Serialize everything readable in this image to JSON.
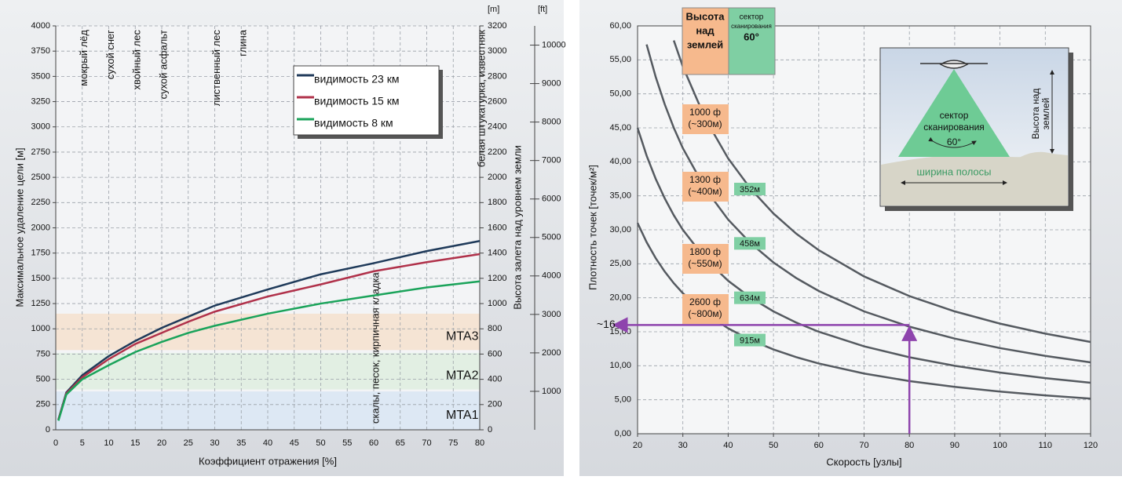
{
  "chart_data": [
    {
      "type": "line",
      "xlabel": "Коэффициент отражения [%]",
      "ylabel": "Максимальное удаление цели [м]",
      "y2label": "Высота залета над уровнем земли",
      "y2unit": "[m]",
      "x": [
        0.5,
        2,
        5,
        10,
        15,
        20,
        25,
        30,
        40,
        50,
        60,
        70,
        80
      ],
      "series": [
        {
          "name": "видимость 23 км",
          "color": "#1f3a5a",
          "values": [
            100,
            370,
            540,
            730,
            880,
            1010,
            1120,
            1230,
            1390,
            1540,
            1650,
            1770,
            1870
          ]
        },
        {
          "name": "видимость 15 км",
          "color": "#b0314a",
          "values": [
            100,
            360,
            520,
            700,
            850,
            960,
            1070,
            1170,
            1320,
            1440,
            1570,
            1660,
            1740
          ]
        },
        {
          "name": "видимость 8 км",
          "color": "#1aa35a",
          "values": [
            90,
            350,
            500,
            640,
            770,
            870,
            960,
            1030,
            1150,
            1250,
            1330,
            1410,
            1470
          ]
        }
      ],
      "xlim": [
        0,
        80
      ],
      "xticks": [
        0,
        5,
        10,
        15,
        20,
        25,
        30,
        35,
        40,
        45,
        50,
        55,
        60,
        65,
        70,
        75,
        80
      ],
      "ylim": [
        0,
        4000
      ],
      "yticks": [
        0,
        250,
        500,
        750,
        1000,
        1250,
        1500,
        1750,
        2000,
        2250,
        2500,
        2750,
        3000,
        3250,
        3500,
        3750,
        4000
      ],
      "y2lim": [
        0,
        3200
      ],
      "y2ticks": [
        0,
        200,
        400,
        600,
        800,
        1000,
        1200,
        1400,
        1600,
        1800,
        2000,
        2200,
        2400,
        2600,
        2800,
        3000,
        3200
      ],
      "ft_axis": {
        "unit": "[ft]",
        "lim": [
          0,
          10500
        ],
        "ticks": [
          1000,
          2000,
          3000,
          4000,
          5000,
          6000,
          7000,
          8000,
          9000,
          10000
        ]
      },
      "grid": true,
      "bands": [
        {
          "label": "MTA1",
          "range": [
            0,
            380
          ],
          "color": "#dde8f4"
        },
        {
          "label": "MTA2",
          "range": [
            400,
            760
          ],
          "color": "#e2efe3"
        },
        {
          "label": "MTA3",
          "range": [
            790,
            1150
          ],
          "color": "#f5e4d4"
        }
      ],
      "band_label_color": "#9a4fb0",
      "top_labels": [
        {
          "text": "мокрый лёд",
          "x": 5
        },
        {
          "text": "сухой снег",
          "x": 10
        },
        {
          "text": "хвойный лес",
          "x": 15
        },
        {
          "text": "сухой асфальт",
          "x": 20
        },
        {
          "text": "лиственный лес",
          "x": 30
        },
        {
          "text": "глина",
          "x": 35
        },
        {
          "text": "белая штукатурка, известняк",
          "x": 80
        }
      ],
      "bottom_labels": [
        {
          "text": "скалы, песок, кирпичная кладка",
          "x": 60
        }
      ]
    },
    {
      "type": "line",
      "xlabel": "Скорость [узлы]",
      "ylabel": "Плотность точек [точек/м²]",
      "x": [
        20,
        22,
        24,
        26,
        28,
        30,
        35,
        40,
        45,
        50,
        55,
        60,
        70,
        80,
        90,
        100,
        110,
        120
      ],
      "series": [
        {
          "name": "915м",
          "color": "#555a60",
          "values": [
            31,
            28.18,
            25.83,
            23.85,
            22.14,
            20.67,
            17.71,
            15.5,
            13.78,
            12.4,
            11.27,
            10.33,
            8.86,
            7.75,
            6.89,
            6.2,
            5.64,
            5.17
          ]
        },
        {
          "name": "634м",
          "color": "#555a60",
          "values": [
            45,
            40.91,
            37.5,
            34.62,
            32.14,
            30,
            25.71,
            22.5,
            20,
            18,
            16.36,
            15,
            12.86,
            11.25,
            10,
            9,
            8.18,
            7.5
          ]
        },
        {
          "name": "458м",
          "color": "#555a60",
          "values": [
            null,
            57.27,
            52.5,
            48.46,
            45,
            42,
            36,
            31.5,
            28,
            25.2,
            22.91,
            21,
            18,
            15.75,
            14,
            12.6,
            11.45,
            10.5
          ]
        },
        {
          "name": "352м",
          "color": "#555a60",
          "values": [
            null,
            null,
            null,
            null,
            57.86,
            54,
            46.29,
            40.5,
            36,
            32.4,
            29.45,
            27,
            23.14,
            20.25,
            18,
            16.2,
            14.73,
            13.5
          ]
        }
      ],
      "xlim": [
        20,
        120
      ],
      "xticks": [
        20,
        30,
        40,
        50,
        60,
        70,
        80,
        90,
        100,
        110,
        120
      ],
      "ylim": [
        0,
        60
      ],
      "yticks": [
        {
          "value": 0,
          "label": "0,00"
        },
        {
          "value": 5,
          "label": "5,00"
        },
        {
          "value": 10,
          "label": "10,00"
        },
        {
          "value": 15,
          "label": "15,00"
        },
        {
          "value": 20,
          "label": "20,00"
        },
        {
          "value": 25,
          "label": "25,00"
        },
        {
          "value": 30,
          "label": "30,00"
        },
        {
          "value": 35,
          "label": "35,00"
        },
        {
          "value": 40,
          "label": "40,00"
        },
        {
          "value": 45,
          "label": "45,00"
        },
        {
          "value": 50,
          "label": "50,00"
        },
        {
          "value": 55,
          "label": "55,00"
        },
        {
          "value": 60,
          "label": "60,00"
        }
      ],
      "grid": true,
      "header": {
        "title": [
          "Высота",
          "над",
          "землей"
        ],
        "sector": [
          "сектор",
          "сканирования"
        ],
        "angle": "60°"
      },
      "altitude_labels": [
        [
          "1000 ф",
          "(~300м)"
        ],
        [
          "1300 ф",
          "(~400м)"
        ],
        [
          "1800 ф",
          "(~550м)"
        ],
        [
          "2600 ф",
          "(~800м)"
        ]
      ],
      "reference": {
        "x": 80,
        "y": 16,
        "label": "~16",
        "color": "#8e44ad"
      },
      "inset": {
        "sector": [
          "сектор",
          "сканирования"
        ],
        "angle": "60°",
        "swath": "ширина полосы",
        "height": [
          "Высота над",
          "землей"
        ]
      }
    }
  ]
}
